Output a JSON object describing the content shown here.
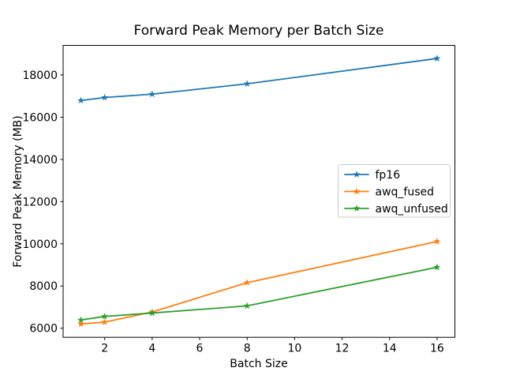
{
  "figure": {
    "background": "#ffffff"
  },
  "chart_data": {
    "type": "line",
    "title": "Forward Peak Memory per Batch Size",
    "xlabel": "Batch Size",
    "ylabel": "Forward Peak Memory (MB)",
    "x": [
      1,
      2,
      4,
      8,
      16
    ],
    "series": [
      {
        "name": "fp16",
        "color": "#1f77b4",
        "marker": "star",
        "values": [
          16790,
          16930,
          17090,
          17580,
          18780
        ]
      },
      {
        "name": "awq_fused",
        "color": "#ff7f0e",
        "marker": "star",
        "values": [
          6200,
          6290,
          6770,
          8160,
          10110
        ]
      },
      {
        "name": "awq_unfused",
        "color": "#2ca02c",
        "marker": "star",
        "values": [
          6390,
          6560,
          6720,
          7060,
          8890
        ]
      }
    ],
    "xlim": [
      0.25,
      16.75
    ],
    "ylim": [
      5570,
      19400
    ],
    "xticks": [
      2,
      4,
      6,
      8,
      10,
      12,
      14,
      16
    ],
    "yticks": [
      6000,
      8000,
      10000,
      12000,
      14000,
      16000,
      18000
    ],
    "grid": false,
    "legend": {
      "position": "center-right",
      "entries": [
        "fp16",
        "awq_fused",
        "awq_unfused"
      ]
    },
    "axis_color": "#000000",
    "text_color": "#000000",
    "legend_border_color": "#cccccc",
    "legend_background": "#ffffff"
  }
}
